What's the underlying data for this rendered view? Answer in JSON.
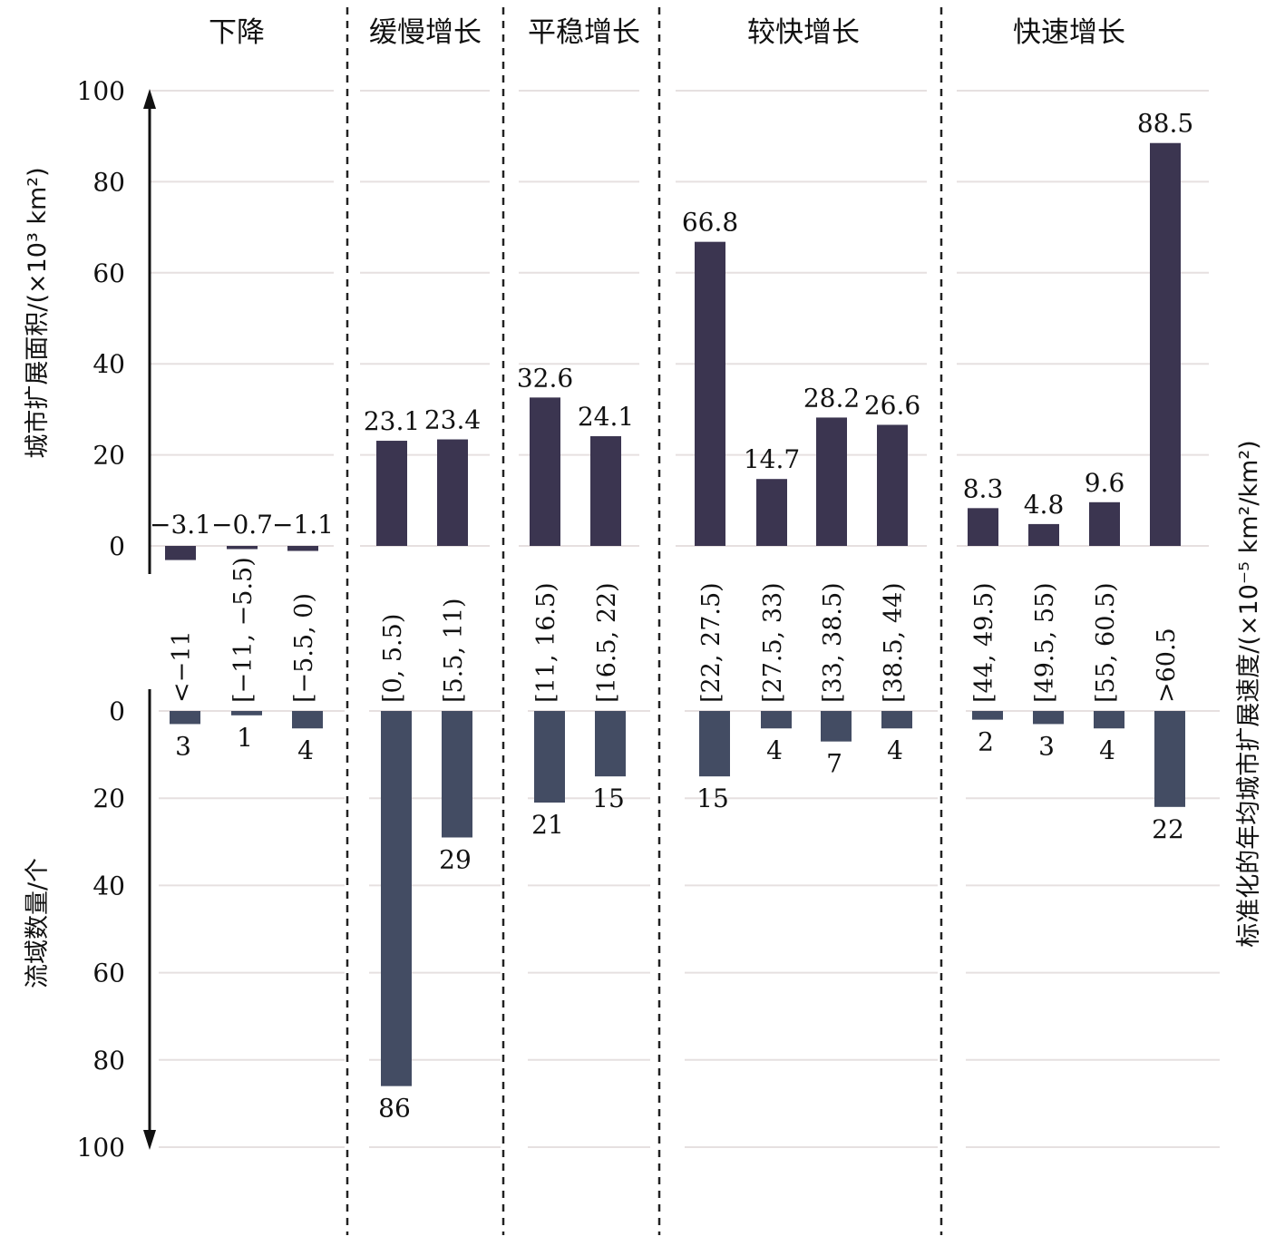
{
  "chart_data": {
    "type": "bar",
    "groups": [
      {
        "name": "下降",
        "categories": [
          "<−11",
          "[−11, −5.5)",
          "[−5.5, 0)"
        ]
      },
      {
        "name": "缓慢增长",
        "categories": [
          "[0, 5.5)",
          "[5.5, 11)"
        ]
      },
      {
        "name": "平稳增长",
        "categories": [
          "[11, 16.5)",
          "[16.5, 22)"
        ]
      },
      {
        "name": "较快增长",
        "categories": [
          "[22, 27.5)",
          "[27.5, 33)",
          "[33, 38.5)",
          "[38.5, 44)"
        ]
      },
      {
        "name": "快速增长",
        "categories": [
          "[44, 49.5)",
          "[49.5, 55)",
          "[55, 60.5)",
          ">60.5"
        ]
      }
    ],
    "categories": [
      "<−11",
      "[−11, −5.5)",
      "[−5.5, 0)",
      "[0, 5.5)",
      "[5.5, 11)",
      "[11, 16.5)",
      "[16.5, 22)",
      "[22, 27.5)",
      "[27.5, 33)",
      "[33, 38.5)",
      "[38.5, 44)",
      "[44, 49.5)",
      "[49.5, 55)",
      "[55, 60.5)",
      ">60.5"
    ],
    "series": [
      {
        "values": [
          -3.1,
          -0.7,
          -1.1,
          23.1,
          23.4,
          32.6,
          24.1,
          66.8,
          14.7,
          28.2,
          26.6,
          8.3,
          4.8,
          9.6,
          88.5
        ],
        "labels": [
          "−3.1",
          "−0.7",
          "−1.1",
          "23.1",
          "23.4",
          "32.6",
          "24.1",
          "66.8",
          "14.7",
          "28.2",
          "26.6",
          "8.3",
          "4.8",
          "9.6",
          "88.5"
        ],
        "color": "#3b3550"
      },
      {
        "values": [
          3,
          1,
          4,
          86,
          29,
          21,
          15,
          15,
          4,
          7,
          4,
          2,
          3,
          4,
          22
        ],
        "labels": [
          "3",
          "1",
          "4",
          "86",
          "29",
          "21",
          "15",
          "15",
          "4",
          "7",
          "4",
          "2",
          "3",
          "4",
          "22"
        ],
        "color": "#434c63"
      }
    ],
    "upper_axis": {
      "label": "城市扩展面积/(×10³ km²)",
      "ticks": [
        "100",
        "80",
        "60",
        "40",
        "20",
        "0"
      ],
      "tick_values": [
        100,
        80,
        60,
        40,
        20,
        0
      ],
      "ylim": [
        0,
        100
      ]
    },
    "lower_axis": {
      "label": "流域数量/个",
      "ticks": [
        "0",
        "20",
        "40",
        "60",
        "80",
        "100"
      ],
      "tick_values": [
        0,
        20,
        40,
        60,
        80,
        100
      ],
      "ylim": [
        0,
        100
      ]
    },
    "xlabel": "标准化的年均城市扩展速度/(×10⁻⁵ km²/km²)",
    "grid": true
  }
}
